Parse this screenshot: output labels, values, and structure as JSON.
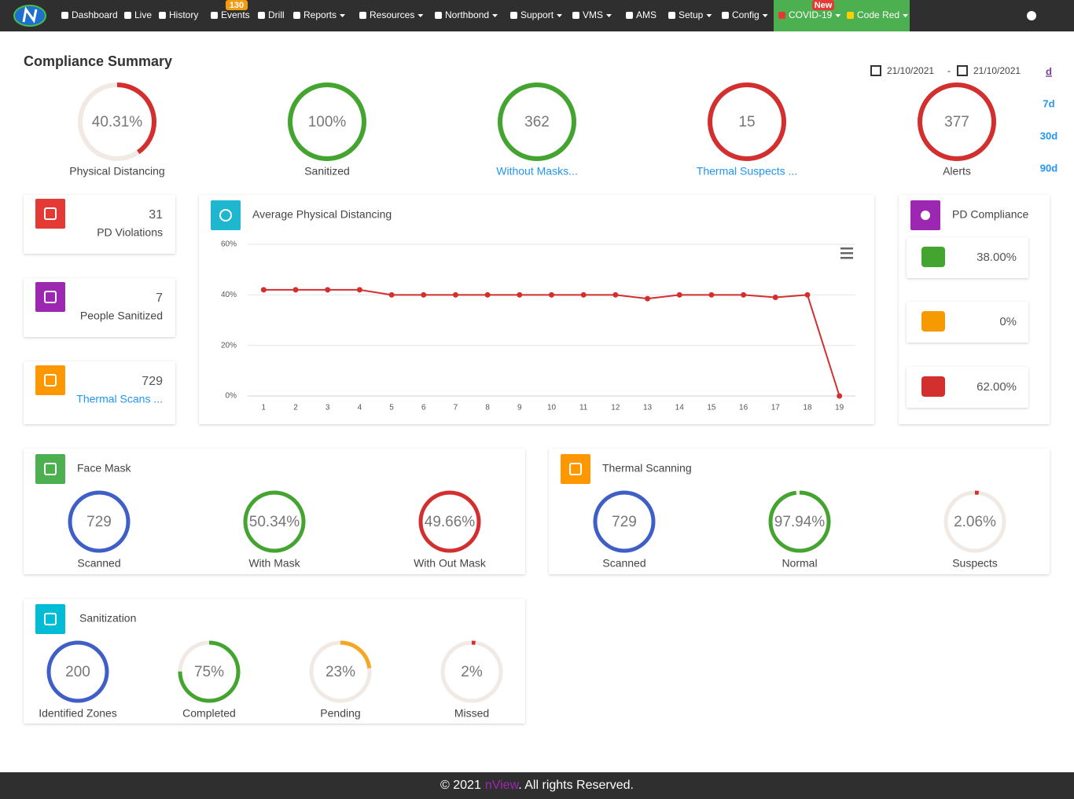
{
  "nav": {
    "items": [
      {
        "label": "Dashboard"
      },
      {
        "label": "Live"
      },
      {
        "label": "History"
      },
      {
        "label": "Events",
        "badge": "130"
      },
      {
        "label": "Drill"
      },
      {
        "label": "Reports"
      },
      {
        "label": "Resources"
      },
      {
        "label": "Northbond"
      },
      {
        "label": "Support"
      },
      {
        "label": "VMS"
      },
      {
        "label": "AMS"
      },
      {
        "label": "Setup"
      },
      {
        "label": "Config"
      },
      {
        "label": "COVID-19",
        "badge": "New"
      },
      {
        "label": "Code Red"
      }
    ]
  },
  "header": {
    "title": "Compliance Summary",
    "date_from": "21/10/2021",
    "separator": "-",
    "date_to": "21/10/2021",
    "ranges": [
      "d",
      "7d",
      "30d",
      "90d"
    ]
  },
  "summary": [
    {
      "text": "40.31%",
      "value": 40.31,
      "caption": "Physical Distancing",
      "color": "#d32f2f"
    },
    {
      "text": "100%",
      "value": 100,
      "caption": "Sanitized",
      "color": "#43a52f"
    },
    {
      "text": "362",
      "caption": "Without Masks...",
      "color": "#43a52f",
      "link": true
    },
    {
      "text": "15",
      "caption": "Thermal Suspects ...",
      "color": "#d32f2f",
      "link": true
    },
    {
      "text": "377",
      "caption": "Alerts",
      "color": "#d32f2f"
    }
  ],
  "stat_cards": [
    {
      "value": 31,
      "label": "PD Violations",
      "color": "#e53935"
    },
    {
      "value": 7,
      "label": "People Sanitized",
      "color": "#9c27b0"
    },
    {
      "value": 729,
      "label": "Thermal Scans ...",
      "color": "#ff9800",
      "link": true
    }
  ],
  "chart": {
    "type": "line",
    "title": "Average Physical Distancing",
    "categories": [
      "1",
      "2",
      "3",
      "4",
      "5",
      "6",
      "7",
      "8",
      "9",
      "10",
      "11",
      "12",
      "13",
      "14",
      "15",
      "16",
      "17",
      "18",
      "19"
    ],
    "values": [
      42,
      42,
      42,
      42,
      40,
      40,
      40,
      40,
      40,
      40,
      40,
      40,
      38.5,
      40,
      40,
      40,
      39,
      40,
      0
    ],
    "color": "#d32f2f",
    "ylim": [
      0,
      60
    ],
    "yticks": [
      {
        "value": 0,
        "label": "0%"
      },
      {
        "value": 20,
        "label": "20%"
      },
      {
        "value": 40,
        "label": "40%"
      },
      {
        "value": 60,
        "label": "60%"
      }
    ],
    "grid": true
  },
  "pd_compliance": {
    "title": "PD Compliance",
    "items": [
      "38.00%",
      "0%",
      "62.00%"
    ]
  },
  "panels": [
    {
      "title": "Face Mask",
      "color": "#4caf50",
      "gauges": [
        {
          "text": "729",
          "caption": "Scanned",
          "color": "#3f5fc8"
        },
        {
          "text": "50.34%",
          "caption": "With Mask",
          "color": "#43a52f"
        },
        {
          "text": "49.66%",
          "caption": "With Out Mask",
          "color": "#d32f2f"
        }
      ]
    },
    {
      "title": "Thermal Scanning",
      "color": "#ff9800",
      "gauges": [
        {
          "text": "729",
          "caption": "Scanned",
          "color": "#3f5fc8"
        },
        {
          "text": "97.94%",
          "value": 97.94,
          "caption": "Normal",
          "color": "#43a52f"
        },
        {
          "text": "2.06%",
          "value": 2.06,
          "caption": "Suspects",
          "color": "#d32f2f"
        }
      ]
    },
    {
      "title": "Sanitization",
      "color": "#00bcd4",
      "gauges": [
        {
          "text": "200",
          "caption": "Identified Zones",
          "color": "#3f5fc8"
        },
        {
          "text": "75%",
          "value": 75,
          "caption": "Completed",
          "color": "#43a52f"
        },
        {
          "text": "23%",
          "value": 23,
          "caption": "Pending",
          "color": "#f5a623"
        },
        {
          "text": "2%",
          "value": 2,
          "caption": "Missed",
          "color": "#d32f2f"
        }
      ]
    }
  ],
  "footer": {
    "copyright": "© 2021",
    "brand": "nView",
    "rights": ". All rights Reserved."
  }
}
